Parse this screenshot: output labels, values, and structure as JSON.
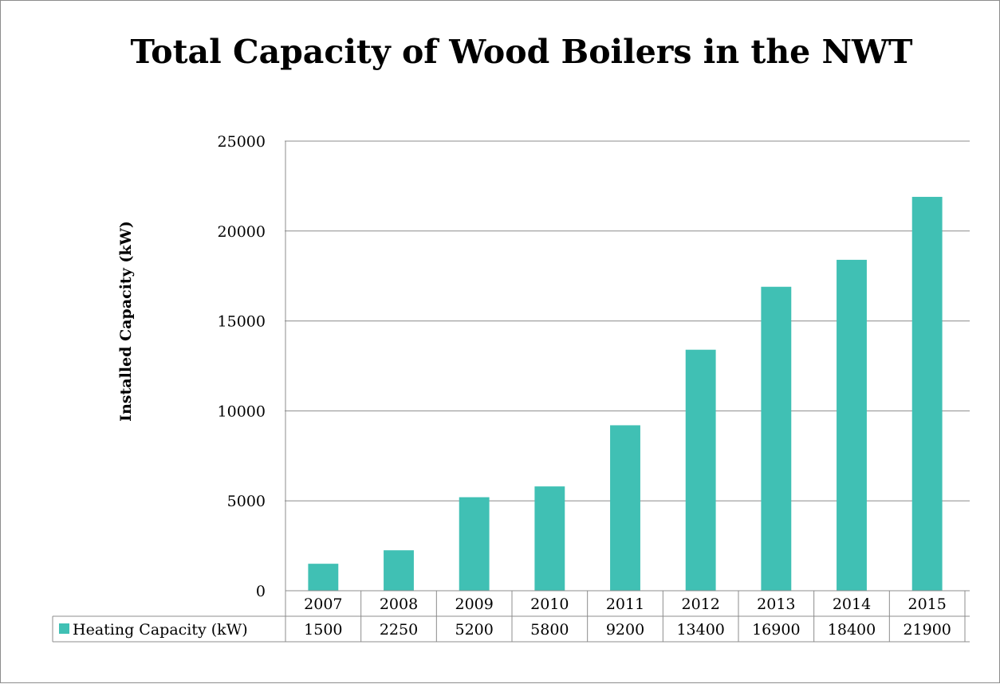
{
  "chart_data": {
    "type": "bar",
    "title": "Total Capacity of Wood Boilers in the NWT",
    "xlabel": "",
    "ylabel": "Installed Capacity (kW)",
    "categories": [
      "2007",
      "2008",
      "2009",
      "2010",
      "2011",
      "2012",
      "2013",
      "2014",
      "2015"
    ],
    "series": [
      {
        "name": "Heating Capacity (kW)",
        "values": [
          1500,
          2250,
          5200,
          5800,
          9200,
          13400,
          16900,
          18400,
          21900
        ],
        "color": "#40c0b4"
      }
    ],
    "ylim": [
      0,
      25000
    ],
    "yticks": [
      "0",
      "5000",
      "10000",
      "15000",
      "20000",
      "25000"
    ],
    "grid": true,
    "legend": "data-table",
    "data_table": true
  }
}
